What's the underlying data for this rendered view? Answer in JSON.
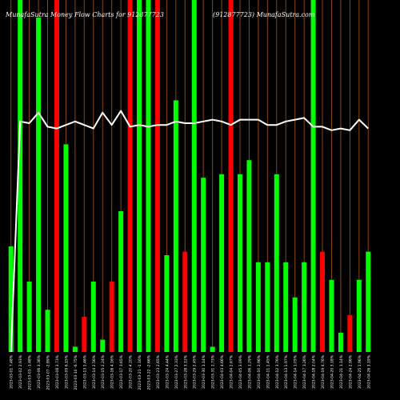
{
  "header": {
    "left": "MunafaSutra Money Flow Charts for 912877723",
    "right": "(912877723) MunafaSutra.com"
  },
  "colors": {
    "background": "#000000",
    "up": "#00ff00",
    "down": "#ff0000",
    "guide": "#8b4513",
    "line": "#ffffff",
    "label": "#ffffff"
  },
  "chart_data": {
    "type": "bar",
    "title": "",
    "xlabel": "",
    "ylabel": "",
    "categories": [
      "2023-03-01 7.48%",
      "2023-03-02 2.93%",
      "2023-03-03 -1.48%",
      "2023-03-06 3.36%",
      "2023-03-07 -2.89%",
      "2023-03-08 3.73%",
      "2023-03-09 6.15%",
      "2023-03-10 -6.75%",
      "2023-03-13 1.46%",
      "2023-03-14 2.56%",
      "2023-03-15 2.24%",
      "2023-03-16 4.16%",
      "2023-03-17 3.65%",
      "2023-03-20 4.20%",
      "2023-03-21 -1.16%",
      "2023-03-22 -2.66%",
      "2023-03-23 2.65%",
      "2023-03-24 4.44%",
      "2023-03-27 2.33%",
      "2023-03-28 3.12%",
      "2023-03-29 2.45%",
      "2023-03-30 1.14%",
      "2023-03-31 2.73%",
      "2023-04-03 4.66%",
      "2023-04-04 2.67%",
      "2023-04-05 3.09%",
      "2023-04-06 1.29%",
      "2023-04-10 2.96%",
      "2023-04-11 1.45%",
      "2023-04-12 3.76%",
      "2023-04-13 1.97%",
      "2023-04-14 1.05%",
      "2023-04-17 3.26%",
      "2023-04-18 2.04%",
      "2023-04-19 4.76%",
      "2023-04-20 3.18%",
      "2023-04-21 1.14%",
      "2023-04-24 2.96%",
      "2023-04-25 1.96%",
      "2023-04-26 3.19%"
    ],
    "series": [
      {
        "values": [
          30,
          100,
          20,
          95,
          12,
          100,
          59,
          1.5,
          10,
          20,
          3.5,
          20,
          40,
          100,
          100,
          100,
          100,
          27.5,
          71.5,
          28.5,
          100,
          49.5,
          1.5,
          50.5,
          100,
          50.5,
          54.5,
          25.5,
          25.5,
          50.5,
          25.5,
          15.5,
          25.5,
          100,
          28.5,
          20.5,
          5.5,
          10.5,
          20.5,
          28.5
        ],
        "colors": [
          "up",
          "up",
          "up",
          "up",
          "up",
          "down",
          "up",
          "up",
          "down",
          "up",
          "up",
          "down",
          "up",
          "down",
          "up",
          "up",
          "down",
          "up",
          "up",
          "down",
          "up",
          "up",
          "up",
          "up",
          "down",
          "up",
          "up",
          "up",
          "up",
          "up",
          "up",
          "up",
          "up",
          "up",
          "down",
          "up",
          "up",
          "down",
          "up",
          "up"
        ]
      }
    ],
    "line": [
      0,
      65.5,
      65,
      68,
      64,
      63.5,
      64.5,
      65.5,
      64.5,
      63.5,
      68,
      64.5,
      68.5,
      64,
      64.5,
      64,
      64.5,
      64.5,
      65.5,
      65,
      65,
      65.5,
      66,
      65.5,
      64.5,
      66,
      66,
      66,
      64.5,
      64.5,
      65.5,
      66,
      66.5,
      64,
      64,
      63,
      63.5,
      63,
      66,
      63.5
    ],
    "ylim": [
      0,
      100
    ],
    "grid": false
  }
}
